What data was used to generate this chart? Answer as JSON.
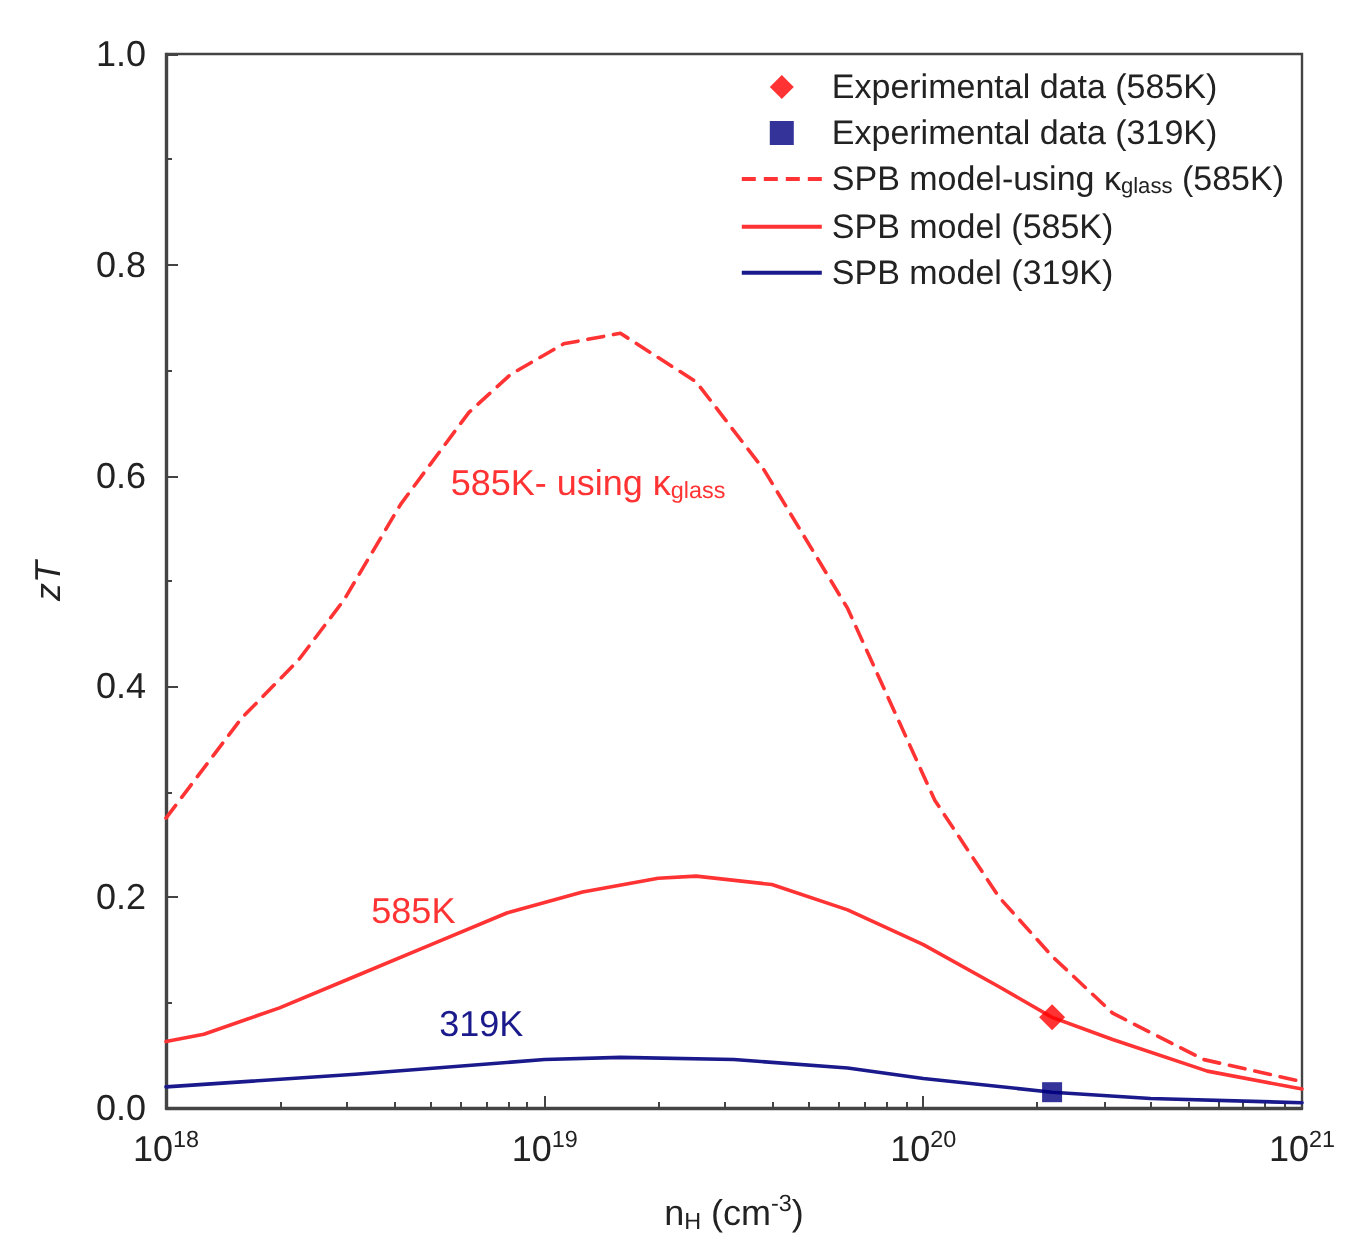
{
  "chart_data": {
    "type": "line",
    "xlabel": "n$_{H}$ (cm$^{-3}$)",
    "ylabel": "zT",
    "log": "x",
    "xlim": [
      1e+18,
      1e+21
    ],
    "xticks": [
      {
        "value": 1e+18,
        "label": "10$^{18}$"
      },
      {
        "value": 1e+19,
        "label": "10$^{19}$"
      },
      {
        "value": 1e+20,
        "label": "10$^{20}$"
      },
      {
        "value": 1e+21,
        "label": "10$^{21}$"
      }
    ],
    "ylim": [
      0,
      1
    ],
    "yticks": [
      {
        "value": 0,
        "label": "0.0"
      },
      0.2,
      0.4,
      0.6,
      0.8,
      {
        "value": 1,
        "label": "1.0"
      }
    ],
    "grid": false,
    "legend": "top right",
    "series": [
      {
        "name": "Experimental data (585K)",
        "type": "scatter",
        "marker": "diamond",
        "color": "#ff0000",
        "x": [
          2.188e+20
        ],
        "values": [
          0.086
        ]
      },
      {
        "name": "Experimental data (319K)",
        "type": "scatter",
        "marker": "square",
        "color": "#000080",
        "x": [
          2.188e+20
        ],
        "values": [
          0.015
        ]
      },
      {
        "name": "SPB model-using κ$_{glass}$ (585K)",
        "line_style": "dashed",
        "color": "#ff3333",
        "x": [
          1e+18,
          1.585e+18,
          2.239e+18,
          2.951e+18,
          4.169e+18,
          6.31e+18,
          8.128e+18,
          1.122e+19,
          1.585e+19,
          2.512e+19,
          3.802e+19,
          6.31e+19,
          1.072e+20,
          1.585e+20,
          2.188e+20,
          3.162e+20,
          5.495e+20,
          1e+21
        ],
        "values": [
          0.275,
          0.37,
          0.425,
          0.482,
          0.573,
          0.66,
          0.696,
          0.725,
          0.735,
          0.689,
          0.605,
          0.474,
          0.292,
          0.2,
          0.144,
          0.09,
          0.046,
          0.025
        ]
      },
      {
        "name": "SPB model (585K)",
        "line_style": "solid",
        "color": "#ff3333",
        "x": [
          1e+18,
          1.259e+18,
          1.995e+18,
          3.162e+18,
          5.012e+18,
          7.943e+18,
          1.259e+19,
          1.995e+19,
          2.512e+19,
          3.981e+19,
          6.31e+19,
          1e+20,
          1.585e+20,
          2.188e+20,
          3.162e+20,
          5.623e+20,
          1e+21
        ],
        "values": [
          0.063,
          0.07,
          0.095,
          0.125,
          0.155,
          0.185,
          0.205,
          0.218,
          0.22,
          0.212,
          0.188,
          0.155,
          0.115,
          0.086,
          0.065,
          0.035,
          0.018
        ]
      },
      {
        "name": "SPB model (319K)",
        "line_style": "solid",
        "color": "#1a1a8c",
        "x": [
          1e+18,
          3.162e+18,
          1e+19,
          1.585e+19,
          3.162e+19,
          6.31e+19,
          1e+20,
          2.188e+20,
          3.981e+20,
          1e+21
        ],
        "values": [
          0.02,
          0.032,
          0.046,
          0.048,
          0.046,
          0.038,
          0.028,
          0.015,
          0.009,
          0.005
        ]
      }
    ],
    "annotations": [
      {
        "text": "585K- using κ$_{glass}$",
        "x": 5e+18,
        "y": 0.612
      },
      {
        "text": "585K",
        "x": 4.5e+18,
        "y": 0.147
      },
      {
        "text": "319K",
        "x": 6.8e+18,
        "y": 0.04
      }
    ]
  }
}
